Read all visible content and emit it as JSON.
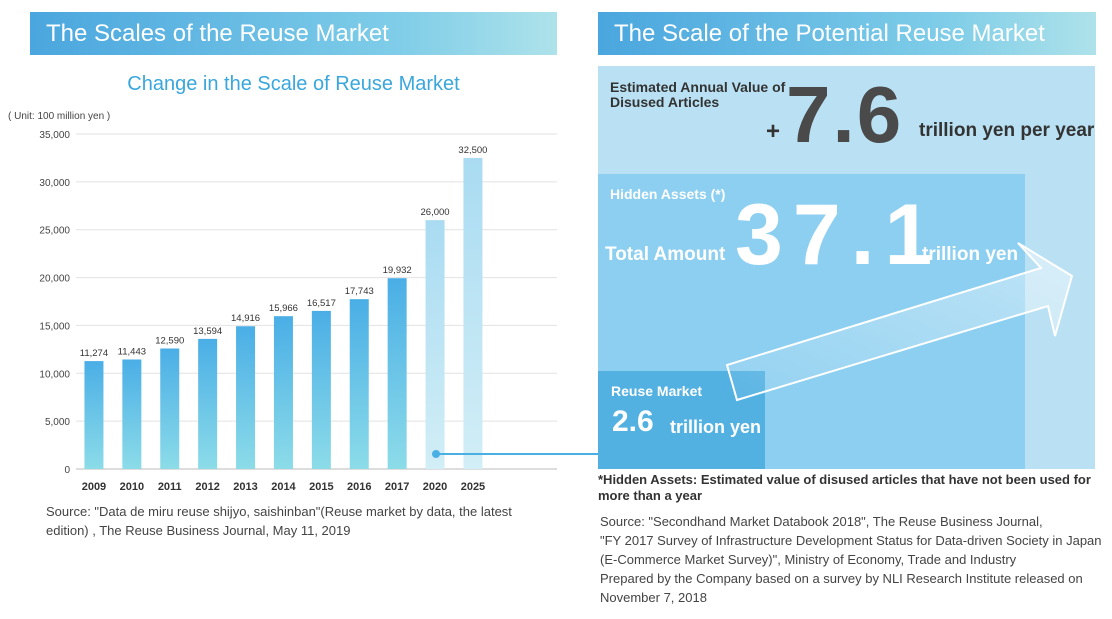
{
  "left_banner": "The Scales of the Reuse Market",
  "right_banner": "The Scale of the Potential Reuse Market",
  "chart_data": {
    "type": "bar",
    "title": "Change in the Scale of Reuse Market",
    "unit_label": "( Unit: 100 million yen )",
    "categories": [
      "2009",
      "2010",
      "2011",
      "2012",
      "2013",
      "2014",
      "2015",
      "2016",
      "2017",
      "2020",
      "2025"
    ],
    "values": [
      11274,
      11443,
      12590,
      13594,
      14916,
      15966,
      16517,
      17743,
      19932,
      26000,
      32500
    ],
    "value_labels": [
      "11,274",
      "11,443",
      "12,590",
      "13,594",
      "14,916",
      "15,966",
      "16,517",
      "17,743",
      "19,932",
      "26,000",
      "32,500"
    ],
    "projected": [
      false,
      false,
      false,
      false,
      false,
      false,
      false,
      false,
      false,
      true,
      true
    ],
    "yticks": [
      0,
      5000,
      10000,
      15000,
      20000,
      25000,
      30000,
      35000
    ],
    "ytick_labels": [
      "0",
      "5,000",
      "10,000",
      "15,000",
      "20,000",
      "25,000",
      "30,000",
      "35,000"
    ],
    "ylim": [
      0,
      35000
    ],
    "grid": true,
    "xlabel": "",
    "ylabel": "",
    "colors": {
      "actual_top": "#4aaee6",
      "actual_bottom": "#8cdce8",
      "projected_top": "#a9dbf2",
      "projected_bottom": "#d2eef6"
    }
  },
  "left_source": "Source: \"Data de miru reuse shijyo, saishinban\"(Reuse  market by data, the latest edition) , The Reuse Business Journal,  May 11, 2019",
  "infographic": {
    "estimated_label": "Estimated Annual Value of Disused Articles",
    "plus": "+",
    "estimated_value": "7.6",
    "estimated_unit": "trillion yen per year",
    "hidden_label": "Hidden Assets (*)",
    "total_label": "Total Amount",
    "total_value": "37.1",
    "total_unit": "trillion yen",
    "reuse_label": "Reuse Market",
    "reuse_value": "2.6",
    "reuse_unit": "trillion yen",
    "colors": {
      "outer": "#b9e1f3",
      "middle": "#8dcff0",
      "inner": "#53b1e2"
    }
  },
  "hidden_note": "*Hidden Assets: Estimated value of disused articles that have not been used for more than a year",
  "right_source_lines": [
    "Source: \"Secondhand Market Databook 2018\", The Reuse Business Journal,",
    "\"FY 2017 Survey of Infrastructure Development Status for Data-driven Society in Japan (E-Commerce Market Survey)\", Ministry of Economy, Trade and Industry",
    "Prepared by the Company based on a survey by NLI Research Institute released on November 7, 2018"
  ]
}
